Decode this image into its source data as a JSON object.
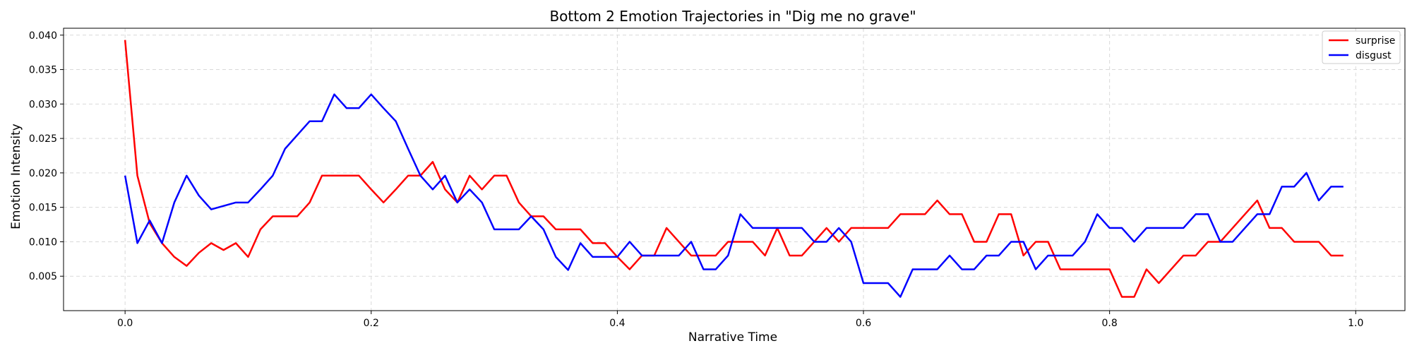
{
  "chart_data": {
    "type": "line",
    "title": "Bottom 2 Emotion Trajectories in \"Dig me no grave\"",
    "xlabel": "Narrative Time",
    "ylabel": "Emotion Intensity",
    "xlim": [
      -0.05,
      1.04
    ],
    "ylim": [
      0.0,
      0.041
    ],
    "xticks": [
      0.0,
      0.2,
      0.4,
      0.6,
      0.8,
      1.0
    ],
    "xtick_labels": [
      "0.0",
      "0.2",
      "0.4",
      "0.6",
      "0.8",
      "1.0"
    ],
    "yticks": [
      0.005,
      0.01,
      0.015,
      0.02,
      0.025,
      0.03,
      0.035,
      0.04
    ],
    "ytick_labels": [
      "0.005",
      "0.010",
      "0.015",
      "0.020",
      "0.025",
      "0.030",
      "0.035",
      "0.040"
    ],
    "grid": true,
    "legend_position": "top-right",
    "x": [
      0.0,
      0.01,
      0.02,
      0.03,
      0.04,
      0.05,
      0.06,
      0.07,
      0.08,
      0.09,
      0.1,
      0.11,
      0.12,
      0.13,
      0.14,
      0.15,
      0.16,
      0.17,
      0.18,
      0.19,
      0.2,
      0.21,
      0.22,
      0.23,
      0.24,
      0.25,
      0.26,
      0.27,
      0.28,
      0.29,
      0.3,
      0.31,
      0.32,
      0.33,
      0.34,
      0.35,
      0.36,
      0.37,
      0.38,
      0.39,
      0.4,
      0.41,
      0.42,
      0.43,
      0.44,
      0.45,
      0.46,
      0.47,
      0.48,
      0.49,
      0.5,
      0.51,
      0.52,
      0.53,
      0.54,
      0.55,
      0.56,
      0.57,
      0.58,
      0.59,
      0.6,
      0.61,
      0.62,
      0.63,
      0.64,
      0.65,
      0.66,
      0.67,
      0.68,
      0.69,
      0.7,
      0.71,
      0.72,
      0.73,
      0.74,
      0.75,
      0.76,
      0.77,
      0.78,
      0.79,
      0.8,
      0.81,
      0.82,
      0.83,
      0.84,
      0.85,
      0.86,
      0.87,
      0.88,
      0.89,
      0.9,
      0.91,
      0.92,
      0.93,
      0.94,
      0.95,
      0.96,
      0.97,
      0.98,
      0.99
    ],
    "series": [
      {
        "name": "surprise",
        "color": "#ff0000",
        "values": [
          0.0393,
          0.0196,
          0.0127,
          0.0098,
          0.0078,
          0.0065,
          0.0084,
          0.0098,
          0.0088,
          0.0098,
          0.0078,
          0.0118,
          0.0137,
          0.0137,
          0.0137,
          0.0157,
          0.0196,
          0.0196,
          0.0196,
          0.0196,
          0.0176,
          0.0157,
          0.0176,
          0.0196,
          0.0196,
          0.0216,
          0.0176,
          0.0157,
          0.0196,
          0.0176,
          0.0196,
          0.0196,
          0.0157,
          0.0137,
          0.0137,
          0.0118,
          0.0118,
          0.0118,
          0.0098,
          0.0098,
          0.0078,
          0.006,
          0.008,
          0.008,
          0.012,
          0.01,
          0.008,
          0.008,
          0.008,
          0.01,
          0.01,
          0.01,
          0.008,
          0.012,
          0.008,
          0.008,
          0.01,
          0.012,
          0.01,
          0.012,
          0.012,
          0.012,
          0.012,
          0.014,
          0.014,
          0.014,
          0.016,
          0.014,
          0.014,
          0.01,
          0.01,
          0.014,
          0.014,
          0.008,
          0.01,
          0.01,
          0.006,
          0.006,
          0.006,
          0.006,
          0.006,
          0.002,
          0.002,
          0.006,
          0.004,
          0.006,
          0.008,
          0.008,
          0.01,
          0.01,
          0.012,
          0.014,
          0.016,
          0.012,
          0.012,
          0.01,
          0.01,
          0.01,
          0.008,
          0.008
        ]
      },
      {
        "name": "disgust",
        "color": "#0000ff",
        "values": [
          0.0196,
          0.0098,
          0.0131,
          0.0098,
          0.0157,
          0.0196,
          0.0167,
          0.0147,
          0.0152,
          0.0157,
          0.0157,
          0.0176,
          0.0196,
          0.0235,
          0.0255,
          0.0275,
          0.0275,
          0.0314,
          0.0294,
          0.0294,
          0.0314,
          0.0294,
          0.0275,
          0.0235,
          0.0196,
          0.0176,
          0.0196,
          0.0157,
          0.0176,
          0.0157,
          0.0118,
          0.0118,
          0.0118,
          0.0137,
          0.0118,
          0.0078,
          0.0059,
          0.0098,
          0.0078,
          0.0078,
          0.0078,
          0.01,
          0.008,
          0.008,
          0.008,
          0.008,
          0.01,
          0.006,
          0.006,
          0.008,
          0.014,
          0.012,
          0.012,
          0.012,
          0.012,
          0.012,
          0.01,
          0.01,
          0.012,
          0.01,
          0.004,
          0.004,
          0.004,
          0.002,
          0.006,
          0.006,
          0.006,
          0.008,
          0.006,
          0.006,
          0.008,
          0.008,
          0.01,
          0.01,
          0.006,
          0.008,
          0.008,
          0.008,
          0.01,
          0.014,
          0.012,
          0.012,
          0.01,
          0.012,
          0.012,
          0.012,
          0.012,
          0.014,
          0.014,
          0.01,
          0.01,
          0.012,
          0.014,
          0.014,
          0.018,
          0.018,
          0.02,
          0.016,
          0.018,
          0.018
        ]
      }
    ]
  }
}
